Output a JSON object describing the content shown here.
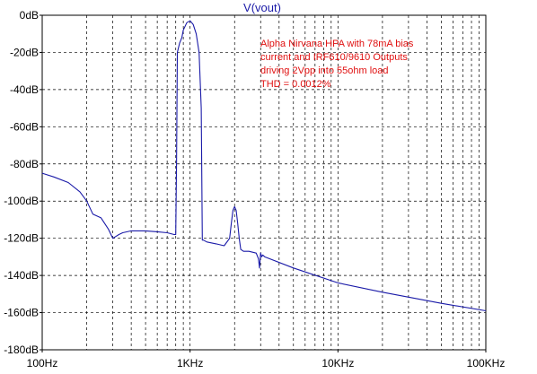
{
  "chart_data": {
    "type": "line",
    "title": "V(vout)",
    "xscale": "log",
    "xlim": [
      100,
      100000
    ],
    "ylim": [
      -180,
      0
    ],
    "xticks": [
      100,
      1000,
      10000,
      100000
    ],
    "xtick_labels": [
      "100Hz",
      "1KHz",
      "10KHz",
      "100KHz"
    ],
    "yticks": [
      0,
      -20,
      -40,
      -60,
      -80,
      -100,
      -120,
      -140,
      -160,
      -180
    ],
    "ytick_labels": [
      "0dB",
      "-20dB",
      "-40dB",
      "-60dB",
      "-80dB",
      "-100dB",
      "-120dB",
      "-140dB",
      "-160dB",
      "-180dB"
    ],
    "grid": true,
    "line_color": "#1a1aa8",
    "annotation": {
      "lines": [
        "Alpha Nirvana HPA with 78mA bias",
        "current and IRF610/9610 Outputs",
        "driving 2Vpp into 55ohm load",
        "THD = 0.0012%"
      ],
      "color": "#e01010"
    },
    "series": [
      {
        "x": [
          100,
          120,
          150,
          180,
          200,
          220,
          250,
          280,
          300,
          330,
          350,
          400,
          500,
          600,
          700,
          780,
          800,
          810,
          820,
          850,
          880,
          900,
          950,
          1000,
          1050,
          1100,
          1150,
          1190,
          1210,
          1230,
          1300,
          1500,
          1700,
          1850,
          1900,
          1950,
          2000,
          2050,
          2100,
          2150,
          2200,
          2300,
          2500,
          2800,
          2900,
          2950,
          3000,
          3050,
          3100,
          3200,
          5000,
          10000,
          20000,
          50000,
          100000
        ],
        "y": [
          -85,
          -87,
          -90,
          -95,
          -100,
          -107,
          -109,
          -115,
          -120,
          -118,
          -117,
          -116,
          -116,
          -116.5,
          -117,
          -118,
          -118,
          -80,
          -20,
          -15,
          -12,
          -8,
          -4,
          -3,
          -5,
          -10,
          -20,
          -50,
          -121,
          -121,
          -122,
          -123,
          -124,
          -120,
          -112,
          -105,
          -103,
          -105,
          -112,
          -120,
          -126,
          -127,
          -127,
          -128,
          -131,
          -136,
          -128,
          -130,
          -129,
          -130,
          -136,
          -144,
          -149,
          -155,
          -159
        ]
      }
    ]
  }
}
